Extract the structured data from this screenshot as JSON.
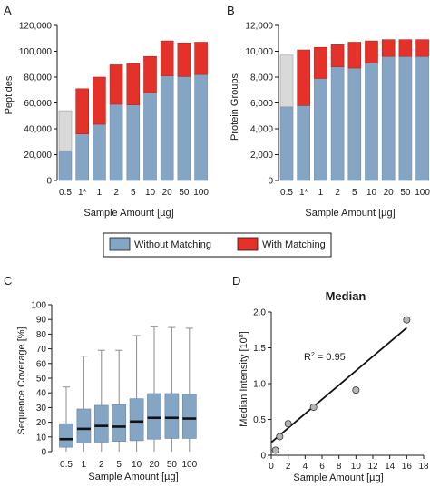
{
  "colors": {
    "without_matching": "#85a5c4",
    "with_matching": "#e4322b",
    "low_sample": "#d9d9d9",
    "axis": "#1a1a1a",
    "box_whisker": "#8c8c8c",
    "scatter_point": "#b5b5b5"
  },
  "legend": {
    "without": "Without Matching",
    "with": "With Matching"
  },
  "chart_data": [
    {
      "panel": "A",
      "type": "bar",
      "stacked": true,
      "categories": [
        "0.5",
        "1*",
        "1",
        "2",
        "5",
        "10",
        "20",
        "50",
        "100"
      ],
      "series": [
        {
          "name": "Without Matching",
          "values": [
            23000,
            36000,
            43500,
            59000,
            58500,
            68000,
            81000,
            80500,
            82000
          ]
        },
        {
          "name": "With Matching",
          "values": [
            31000,
            35000,
            36500,
            30500,
            32000,
            28000,
            27000,
            26000,
            25000
          ]
        }
      ],
      "grey_categories": [
        "0.5"
      ],
      "ylabel": "Peptides",
      "xlabel": "Sample Amount [µg]",
      "ylim": [
        0,
        120000
      ],
      "yticks": [
        "0",
        "20,000",
        "40,000",
        "60,000",
        "80,000",
        "100,000",
        "120,000"
      ],
      "grid": false
    },
    {
      "panel": "B",
      "type": "bar",
      "stacked": true,
      "categories": [
        "0.5",
        "1*",
        "1",
        "2",
        "5",
        "10",
        "20",
        "50",
        "100"
      ],
      "series": [
        {
          "name": "Without Matching",
          "values": [
            5700,
            5800,
            7900,
            8800,
            8700,
            9100,
            9600,
            9600,
            9600
          ]
        },
        {
          "name": "With Matching",
          "values": [
            4000,
            4300,
            2400,
            1700,
            2000,
            1700,
            1300,
            1300,
            1300
          ]
        }
      ],
      "grey_categories": [
        "0.5"
      ],
      "ylabel": "Protein Groups",
      "xlabel": "Sample Amount [µg]",
      "ylim": [
        0,
        12000
      ],
      "yticks": [
        "0",
        "2,000",
        "4,000",
        "6,000",
        "8,000",
        "10,000",
        "12,000"
      ],
      "grid": false
    },
    {
      "panel": "C",
      "type": "box",
      "categories": [
        "0.5",
        "1",
        "2",
        "5",
        "10",
        "20",
        "50",
        "100"
      ],
      "boxes": [
        {
          "min": 0,
          "q1": 3,
          "median": 8.5,
          "q3": 19,
          "max": 44
        },
        {
          "min": 0,
          "q1": 6,
          "median": 15.5,
          "q3": 29,
          "max": 65
        },
        {
          "min": 0,
          "q1": 6.5,
          "median": 17.5,
          "q3": 31.5,
          "max": 69
        },
        {
          "min": 0,
          "q1": 7,
          "median": 17,
          "q3": 32,
          "max": 69
        },
        {
          "min": 0,
          "q1": 7.5,
          "median": 20.5,
          "q3": 36,
          "max": 79
        },
        {
          "min": 0,
          "q1": 8.5,
          "median": 23,
          "q3": 39.5,
          "max": 85
        },
        {
          "min": 0,
          "q1": 9,
          "median": 23,
          "q3": 39.5,
          "max": 84.5
        },
        {
          "min": 0,
          "q1": 9,
          "median": 22.5,
          "q3": 39,
          "max": 84
        }
      ],
      "ylabel": "Sequence Coverage [%]",
      "xlabel": "Sample Amount [µg]",
      "ylim": [
        0,
        100
      ],
      "yticks": [
        "0",
        "10",
        "20",
        "30",
        "40",
        "50",
        "60",
        "70",
        "80",
        "90",
        "100"
      ],
      "grid": false
    },
    {
      "panel": "D",
      "type": "scatter",
      "title": "Median",
      "points": [
        {
          "x": 0.5,
          "y": 0.07
        },
        {
          "x": 1,
          "y": 0.26
        },
        {
          "x": 2,
          "y": 0.44
        },
        {
          "x": 5,
          "y": 0.67
        },
        {
          "x": 10,
          "y": 0.91
        },
        {
          "x": 16,
          "y": 1.89
        }
      ],
      "fit": {
        "x": [
          0,
          16
        ],
        "y": [
          0.18,
          1.78
        ]
      },
      "annotation_prefix": "R",
      "annotation_sup": "2",
      "annotation_value": " = 0.95",
      "ylabel_main": "Median Intensity [10",
      "ylabel_sup": "8",
      "ylabel_end": "]",
      "xlabel": "Sample Amount [µg]",
      "xlim": [
        0,
        18
      ],
      "ylim": [
        0,
        2.0
      ],
      "xticks": [
        "0",
        "2",
        "4",
        "6",
        "8",
        "10",
        "12",
        "14",
        "16",
        "18"
      ],
      "yticks": [
        "0",
        "0.5",
        "1.0",
        "1.5",
        "2.0"
      ],
      "grid": false
    }
  ]
}
